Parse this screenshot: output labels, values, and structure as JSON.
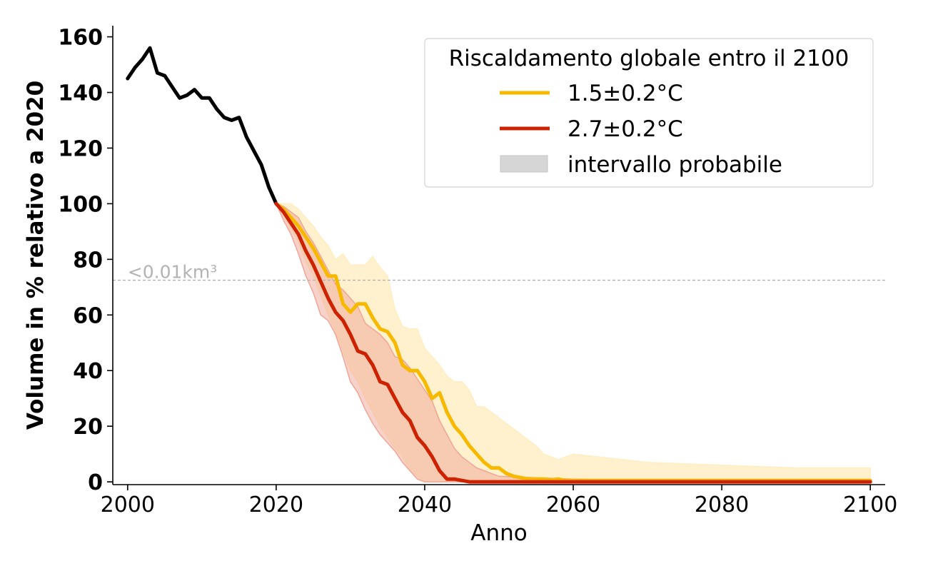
{
  "chart_data": {
    "type": "line",
    "xlabel": "Anno",
    "ylabel": "Volume in % relativo a 2020",
    "xlim": [
      1998,
      2102
    ],
    "ylim": [
      -1,
      164
    ],
    "xticks": [
      2000,
      2020,
      2040,
      2060,
      2080,
      2100
    ],
    "yticks": [
      0,
      20,
      40,
      60,
      80,
      100,
      120,
      140,
      160
    ],
    "grid": false,
    "legend": {
      "title": "Riscaldamento globale entro il 2100",
      "placement": "top-right",
      "range_label": "intervallo probabile"
    },
    "threshold": {
      "y": 72.5,
      "label": "<0.01km³",
      "color": "#b3b3b3"
    },
    "historical": {
      "color": "#000000",
      "x": [
        2000,
        2001,
        2002,
        2003,
        2004,
        2005,
        2006,
        2007,
        2008,
        2009,
        2010,
        2011,
        2012,
        2013,
        2014,
        2015,
        2016,
        2017,
        2018,
        2019,
        2020
      ],
      "y": [
        145,
        149,
        152,
        156,
        147,
        146,
        142,
        138,
        139,
        141,
        138,
        138,
        134,
        131,
        130,
        131,
        124,
        119,
        114,
        106,
        100
      ]
    },
    "series": [
      {
        "name": "1.5±0.2°C",
        "color": "#f6b900",
        "band_color": "#ffeec4",
        "x": [
          2020,
          2021,
          2022,
          2023,
          2024,
          2025,
          2026,
          2027,
          2028,
          2029,
          2030,
          2031,
          2032,
          2033,
          2034,
          2035,
          2036,
          2037,
          2038,
          2039,
          2040,
          2041,
          2042,
          2043,
          2044,
          2045,
          2046,
          2047,
          2048,
          2049,
          2050,
          2051,
          2052,
          2053,
          2054,
          2055,
          2056,
          2057,
          2058,
          2059,
          2060,
          2070,
          2080,
          2090,
          2100
        ],
        "y": [
          100,
          98,
          95,
          92,
          88,
          84,
          79,
          74,
          74,
          64,
          61,
          64,
          64,
          59,
          55,
          54,
          50,
          42,
          40,
          40,
          36,
          30,
          32,
          25,
          20,
          17,
          13,
          10,
          7,
          5,
          5,
          3,
          2,
          1.5,
          1,
          1,
          1,
          0.7,
          1,
          0.5,
          0.5,
          0.5,
          0.5,
          0.5,
          0.5
        ],
        "upper": [
          100,
          100,
          100,
          98,
          95,
          92,
          88,
          85,
          80,
          82,
          78,
          78,
          78,
          81,
          77,
          74,
          62,
          56,
          55,
          55,
          48,
          45,
          42,
          38,
          36,
          36,
          33,
          27,
          27,
          25,
          23,
          21,
          19,
          17,
          15,
          13,
          10,
          9,
          8,
          9,
          10,
          7,
          6,
          5,
          5
        ],
        "lower": [
          100,
          96,
          91,
          86,
          79,
          74,
          67,
          60,
          54,
          47,
          40,
          36,
          30,
          25,
          20,
          16,
          12,
          9,
          4,
          2,
          0,
          0,
          0,
          0,
          0,
          0,
          0,
          0,
          0,
          0,
          0,
          0,
          0,
          0,
          0,
          0,
          0,
          0,
          0,
          0,
          0,
          0,
          0,
          0,
          0
        ]
      },
      {
        "name": "2.7±0.2°C",
        "color": "#cc2200",
        "band_color": "#f0a596",
        "x": [
          2020,
          2021,
          2022,
          2023,
          2024,
          2025,
          2026,
          2027,
          2028,
          2029,
          2030,
          2031,
          2032,
          2033,
          2034,
          2035,
          2036,
          2037,
          2038,
          2039,
          2040,
          2041,
          2042,
          2043,
          2044,
          2045,
          2046,
          2047,
          2048,
          2049,
          2050,
          2060,
          2070,
          2080,
          2090,
          2100
        ],
        "y": [
          100,
          97,
          93,
          89,
          83,
          78,
          72,
          66,
          61,
          58,
          53,
          47,
          46,
          42,
          36,
          35,
          30,
          25,
          22,
          16,
          13,
          9,
          4,
          1,
          1,
          0.5,
          0,
          0,
          0,
          0,
          0,
          0,
          0,
          0,
          0,
          0
        ],
        "upper": [
          100,
          99,
          97,
          95,
          90,
          86,
          81,
          76,
          71,
          69,
          66,
          63,
          57,
          55,
          53,
          50,
          45,
          44,
          41,
          37,
          33,
          29,
          22,
          17,
          12,
          9,
          7,
          5,
          4,
          3,
          2,
          1,
          0.5,
          0.5,
          0.5,
          0.5
        ],
        "lower": [
          100,
          94,
          89,
          82,
          74,
          68,
          60,
          58,
          53,
          45,
          36,
          32,
          26,
          21,
          17,
          14,
          11,
          7,
          4,
          1,
          0,
          0,
          0,
          0,
          0,
          0,
          0,
          0,
          0,
          0,
          0,
          0,
          0,
          0,
          0,
          0
        ]
      }
    ]
  }
}
